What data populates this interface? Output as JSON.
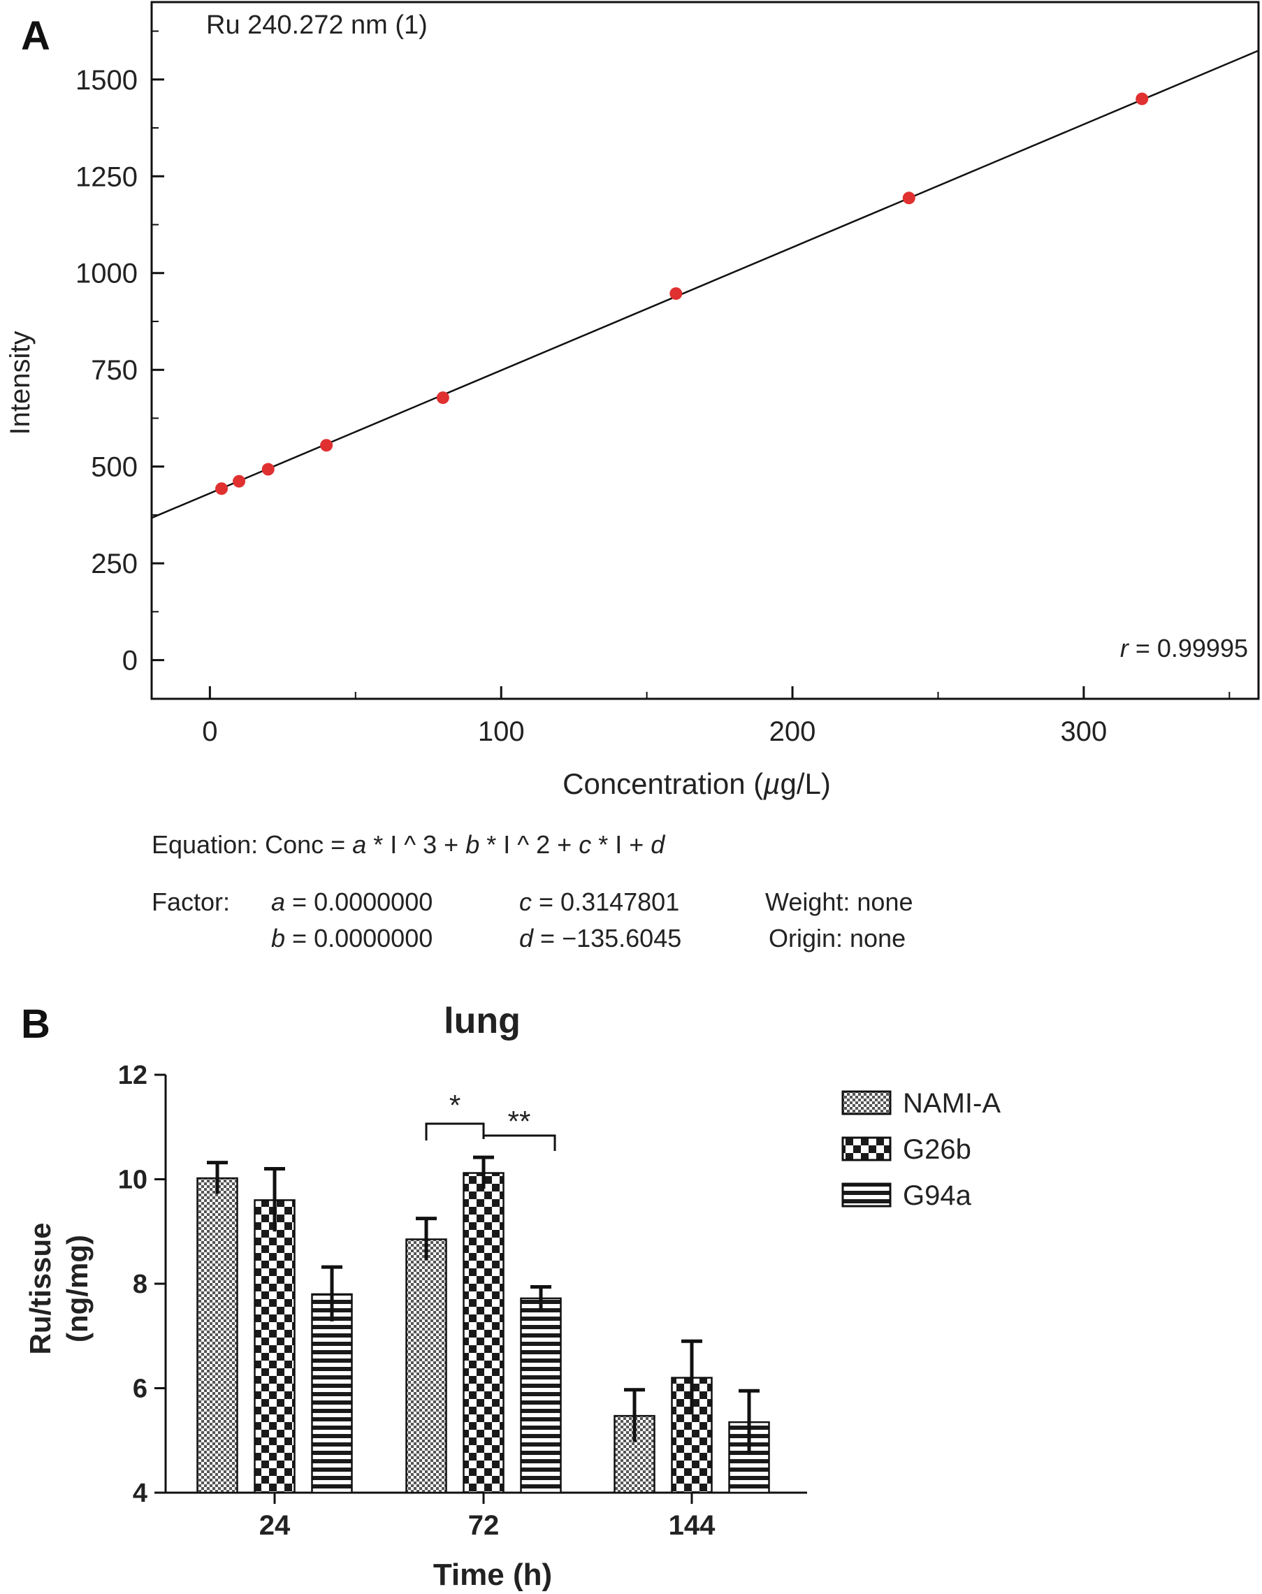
{
  "panels": {
    "a_letter": "A",
    "b_letter": "B"
  },
  "colors": {
    "point": "#e03030",
    "line": "#111111",
    "axis": "#111111"
  },
  "chart_data": [
    {
      "id": "A",
      "type": "scatter",
      "annotation": "Ru 240.272 nm (1)",
      "xlabel_prefix": "Concentration (",
      "xlabel_mu": "µ",
      "xlabel_suffix": "g/L)",
      "ylabel": "Intensity",
      "xlim": [
        -20,
        360
      ],
      "ylim": [
        -100,
        1700
      ],
      "xticks": [
        0,
        100,
        200,
        300
      ],
      "yticks": [
        0,
        250,
        500,
        750,
        1000,
        1250,
        1500
      ],
      "points": [
        {
          "x": 4,
          "y": 443
        },
        {
          "x": 10,
          "y": 462
        },
        {
          "x": 20,
          "y": 493
        },
        {
          "x": 40,
          "y": 555
        },
        {
          "x": 80,
          "y": 678
        },
        {
          "x": 160,
          "y": 947
        },
        {
          "x": 240,
          "y": 1194
        },
        {
          "x": 320,
          "y": 1450
        }
      ],
      "fit_line": {
        "intercept": 431,
        "slope": 3.177
      },
      "r_label": "r",
      "r_value": "= 0.99995",
      "equation": {
        "line1_label": "Equation:",
        "line1_text": "Conc = ",
        "terms": [
          "a",
          " * I ^ 3 + ",
          "b",
          " * I ^ 2 + ",
          "c",
          " * I + ",
          "d"
        ],
        "factor_label": "Factor:",
        "a_val": "= 0.0000000",
        "b_val": "= 0.0000000",
        "c_val": "= 0.3147801",
        "d_val": "= −135.6045",
        "weight": "Weight: none",
        "origin": "Origin:  none"
      }
    },
    {
      "id": "B",
      "type": "bar",
      "title": "lung",
      "xlabel": "Time (h)",
      "ylabel_line1": "Ru/tissue",
      "ylabel_line2": "(ng/mg)",
      "ylim": [
        4,
        12
      ],
      "yticks": [
        4,
        6,
        8,
        10,
        12
      ],
      "categories": [
        "24",
        "72",
        "144"
      ],
      "series": [
        {
          "name": "NAMI-A",
          "pattern": "fine",
          "values": [
            10.02,
            8.85,
            5.47
          ],
          "errors": [
            0.3,
            0.4,
            0.5
          ]
        },
        {
          "name": "G26b",
          "pattern": "checker",
          "values": [
            9.6,
            10.12,
            6.2
          ],
          "errors": [
            0.6,
            0.3,
            0.7
          ]
        },
        {
          "name": "G94a",
          "pattern": "stripes",
          "values": [
            7.8,
            7.72,
            5.35
          ],
          "errors": [
            0.52,
            0.22,
            0.6
          ]
        }
      ],
      "significance": [
        {
          "label": "*"
        },
        {
          "label": "**"
        }
      ]
    }
  ]
}
